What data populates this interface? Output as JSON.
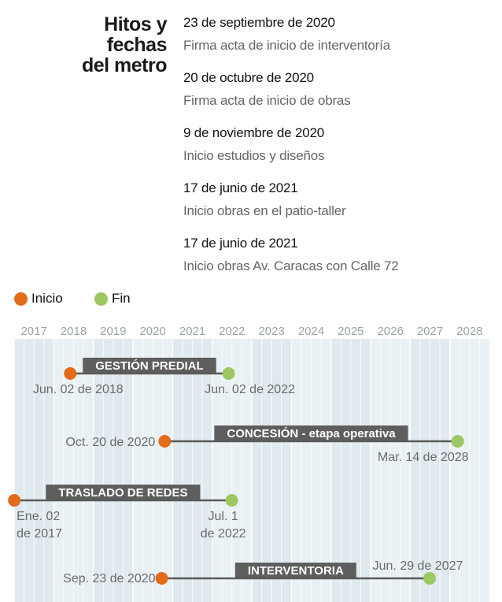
{
  "title": [
    "Hitos y",
    "fechas",
    "del metro"
  ],
  "milestones": [
    {
      "date": "23 de septiembre de 2020",
      "desc": "Firma acta de inicio de interventoría"
    },
    {
      "date": "20 de octubre de 2020",
      "desc": "Firma acta de inicio de obras"
    },
    {
      "date": "9 de noviembre de 2020",
      "desc": "Inicio estudios y diseños"
    },
    {
      "date": "17 de junio de 2021",
      "desc": "Inicio obras en el patio-taller"
    },
    {
      "date": "17 de junio de 2021",
      "desc": "Inicio obras Av. Caracas con Calle 72"
    }
  ],
  "legend": {
    "start": "Inicio",
    "end": "Fin"
  },
  "colors": {
    "start": "#e36c1a",
    "end": "#9cc762",
    "bar": "#5a5a5a",
    "label_bg": "#5e5e5e",
    "grid": "#d3e0e7"
  },
  "chart_data": {
    "type": "gantt",
    "x_range": [
      "2017",
      "2028"
    ],
    "years": [
      "2017",
      "2018",
      "2019",
      "2020",
      "2021",
      "2022",
      "2023",
      "2024",
      "2025",
      "2026",
      "2027",
      "2028"
    ],
    "tasks": [
      {
        "name": "GESTIÓN PREDIAL",
        "start": "2018-06-02",
        "end": "2022-06-02",
        "start_label": [
          "Jun. 02 de 2018"
        ],
        "end_label": [
          "Jun. 02 de 2022"
        ]
      },
      {
        "name": "CONCESIÓN - etapa operativa",
        "start": "2020-10-20",
        "end": "2028-03-14",
        "start_label": [
          "Oct. 20 de 2020"
        ],
        "end_label": [
          "Mar. 14 de 2028"
        ]
      },
      {
        "name": "TRASLADO DE REDES",
        "start": "2017-01-02",
        "end": "2022-07-01",
        "start_label": [
          "Ene. 02",
          "de 2017"
        ],
        "end_label": [
          "Jul. 1",
          "de 2022"
        ]
      },
      {
        "name": "INTERVENTORIA",
        "start": "2020-09-23",
        "end": "2027-06-29",
        "start_label": [
          "Sep. 23 de 2020"
        ],
        "end_label": [
          "Jun. 29 de 2027"
        ]
      }
    ]
  }
}
